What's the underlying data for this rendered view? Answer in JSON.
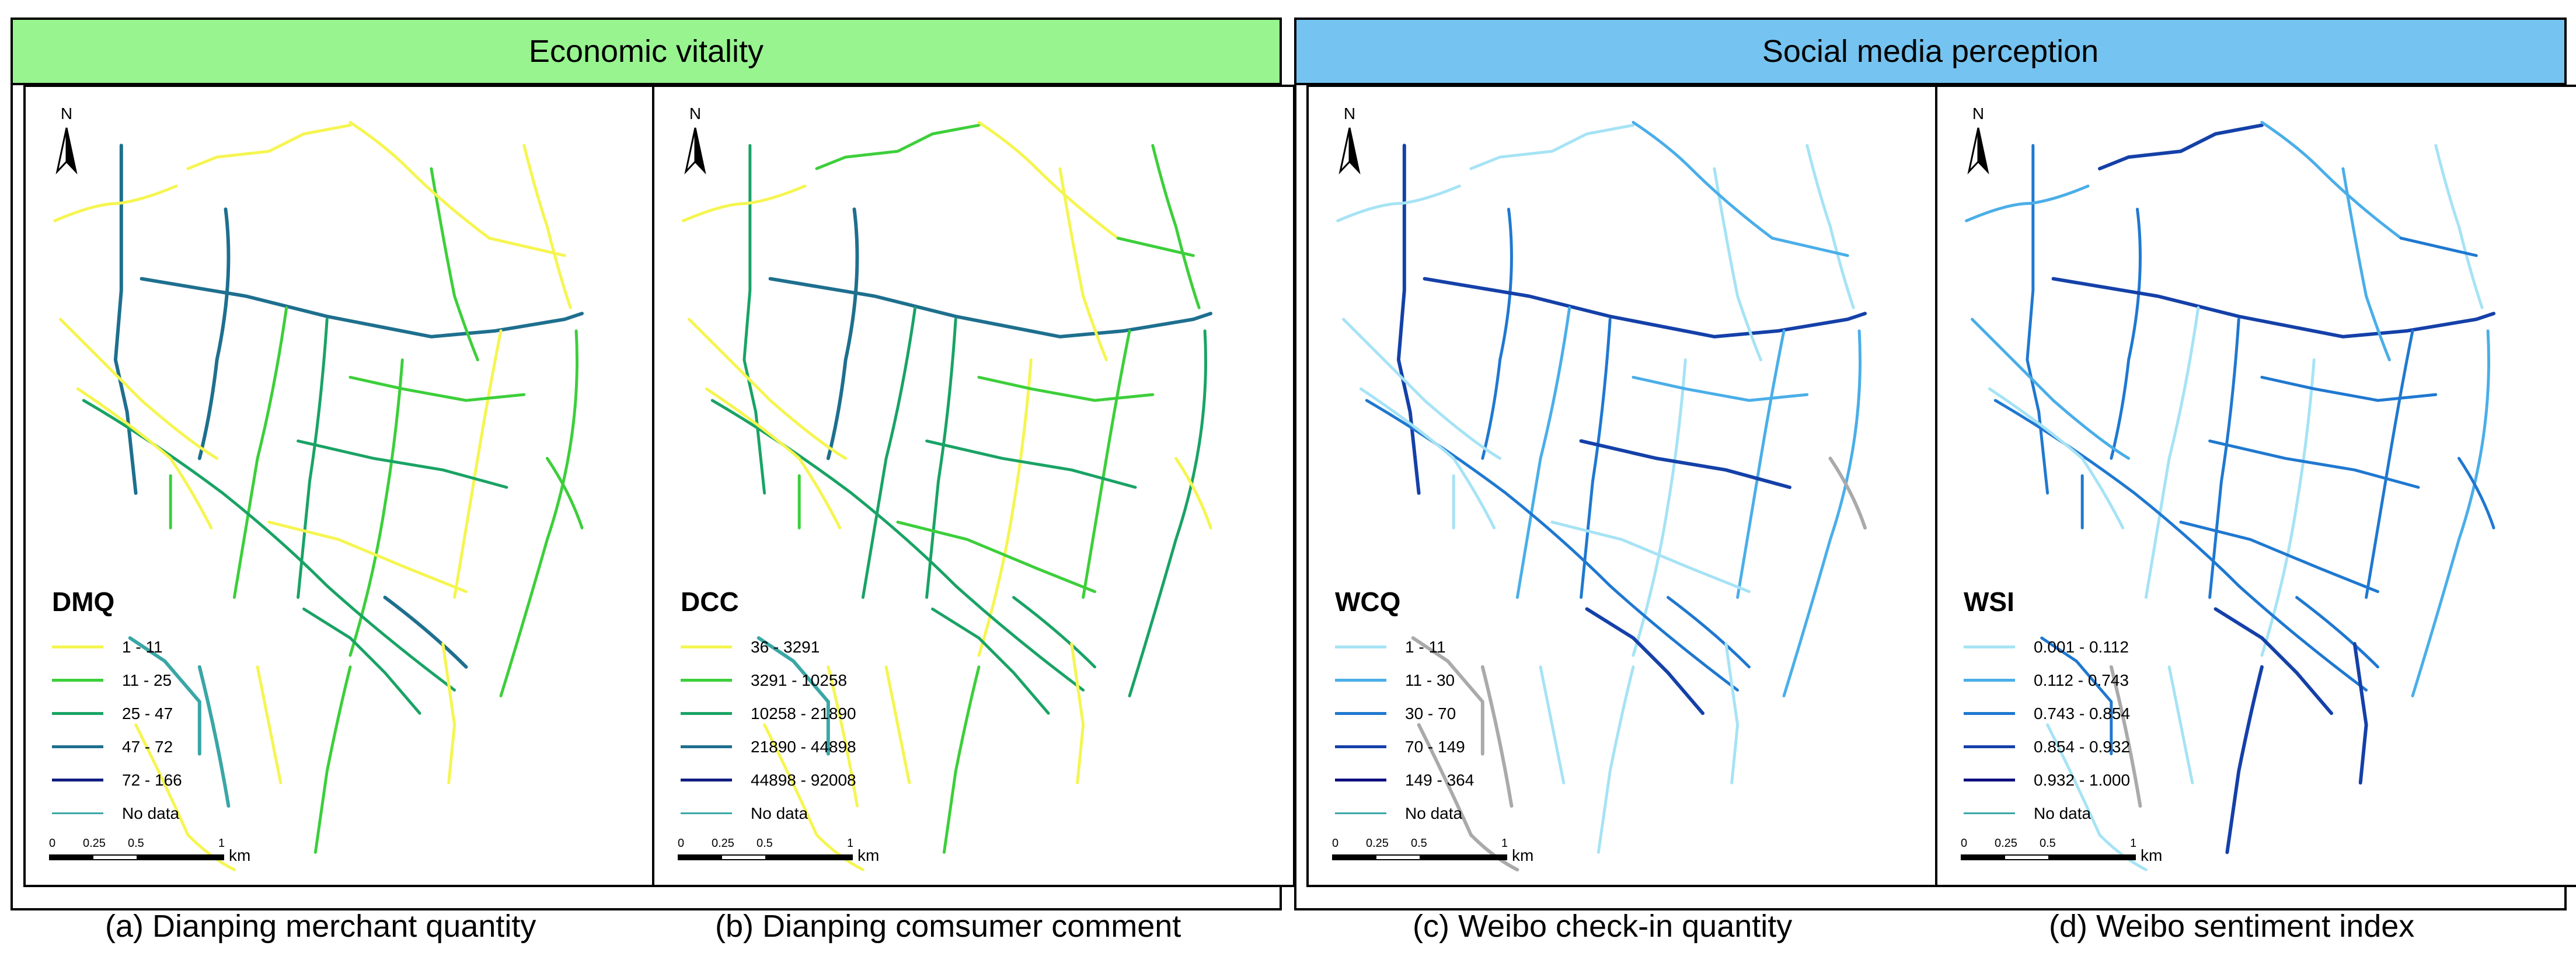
{
  "groups": [
    {
      "title": "Economic vitality",
      "color": "#98f48f"
    },
    {
      "title": "Social media perception",
      "color": "#75c3f0"
    }
  ],
  "common": {
    "north": "N",
    "scale": {
      "ticks": [
        "0",
        "0.25",
        "0.5",
        "1"
      ],
      "unit": "km"
    }
  },
  "panels": [
    {
      "caption": "(a) Dianping merchant quantity",
      "legend_title": "DMQ",
      "classes": [
        {
          "label": "1 - 11",
          "color": "#f5f550"
        },
        {
          "label": "11 - 25",
          "color": "#3ccf3a"
        },
        {
          "label": "25 - 47",
          "color": "#19a365"
        },
        {
          "label": "47 - 72",
          "color": "#1e6f8e"
        },
        {
          "label": "72 - 166",
          "color": "#101e80"
        }
      ],
      "no_data": {
        "label": "No data",
        "color": "#3aa6a6"
      }
    },
    {
      "caption": "(b) Dianping comsumer comment",
      "legend_title": "DCC",
      "classes": [
        {
          "label": "36 - 3291",
          "color": "#f5f550"
        },
        {
          "label": "3291 - 10258",
          "color": "#3ccf3a"
        },
        {
          "label": "10258 - 21890",
          "color": "#19a365"
        },
        {
          "label": "21890 - 44898",
          "color": "#1e6f8e"
        },
        {
          "label": "44898 - 92008",
          "color": "#101e80"
        }
      ],
      "no_data": {
        "label": "No data",
        "color": "#3aa6a6"
      }
    },
    {
      "caption": "(c)  Weibo check-in quantity",
      "legend_title": "WCQ",
      "classes": [
        {
          "label": "1 - 11",
          "color": "#a6e3f5"
        },
        {
          "label": "11 - 30",
          "color": "#4aaee8"
        },
        {
          "label": "30 - 70",
          "color": "#1f78d0"
        },
        {
          "label": "70 - 149",
          "color": "#1440a8"
        },
        {
          "label": "149 - 364",
          "color": "#0d0d80"
        }
      ],
      "no_data": {
        "label": "No data",
        "color": "#3aa6a6"
      },
      "nodata_road_color": "#aaaaaa"
    },
    {
      "caption": "(d)  Weibo sentiment index",
      "legend_title": "WSI",
      "classes": [
        {
          "label": "0.001 - 0.112",
          "color": "#a6e3f5"
        },
        {
          "label": "0.112 - 0.743",
          "color": "#4aaee8"
        },
        {
          "label": "0.743 - 0.854",
          "color": "#1f78d0"
        },
        {
          "label": "0.854 - 0.932",
          "color": "#1440a8"
        },
        {
          "label": "0.932 - 1.000",
          "color": "#0d0d80"
        }
      ],
      "no_data": {
        "label": "No data",
        "color": "#3aa6a6"
      },
      "nodata_road_color": "#aaaaaa"
    }
  ]
}
